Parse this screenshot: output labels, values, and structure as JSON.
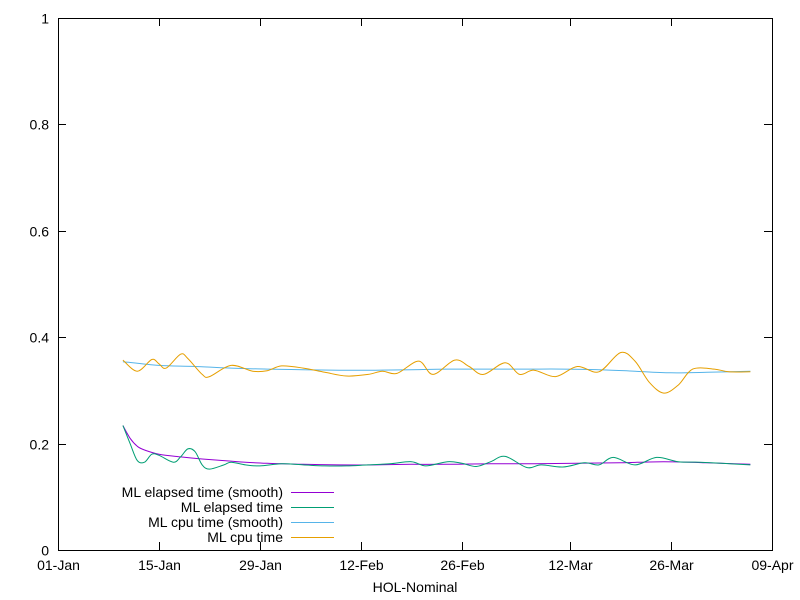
{
  "chart_data": {
    "type": "line",
    "xlabel": "HOL-Nominal",
    "ylabel": "",
    "ylim": [
      0,
      1
    ],
    "y_ticks": [
      0,
      0.2,
      0.4,
      0.6,
      0.8,
      1
    ],
    "y_tick_labels": [
      "0",
      "0.2",
      "0.4",
      "0.6",
      "0.8",
      "1"
    ],
    "x_range": [
      "2024-01-01",
      "2024-04-09"
    ],
    "x_ticks": [
      "2024-01-01",
      "2024-01-15",
      "2024-01-29",
      "2024-02-12",
      "2024-02-26",
      "2024-03-12",
      "2024-03-26",
      "2024-04-09"
    ],
    "x_tick_labels": [
      "01-Jan",
      "15-Jan",
      "29-Jan",
      "12-Feb",
      "26-Feb",
      "12-Mar",
      "26-Mar",
      "09-Apr"
    ],
    "grid": false,
    "legend_position": "bottom-left",
    "series": [
      {
        "name": "ML elapsed time (smooth)",
        "color": "#9400d3",
        "points": [
          [
            "2024-01-10",
            0.234
          ],
          [
            "2024-01-11",
            0.21
          ],
          [
            "2024-01-12",
            0.195
          ],
          [
            "2024-01-13",
            0.188
          ],
          [
            "2024-01-15",
            0.18
          ],
          [
            "2024-01-18",
            0.175
          ],
          [
            "2024-01-21",
            0.171
          ],
          [
            "2024-01-24",
            0.168
          ],
          [
            "2024-01-27",
            0.165
          ],
          [
            "2024-01-30",
            0.163
          ],
          [
            "2024-02-04",
            0.161
          ],
          [
            "2024-02-09",
            0.16
          ],
          [
            "2024-02-14",
            0.16
          ],
          [
            "2024-02-19",
            0.161
          ],
          [
            "2024-02-24",
            0.161
          ],
          [
            "2024-03-01",
            0.162
          ],
          [
            "2024-03-07",
            0.162
          ],
          [
            "2024-03-13",
            0.163
          ],
          [
            "2024-03-19",
            0.164
          ],
          [
            "2024-03-25",
            0.166
          ],
          [
            "2024-03-31",
            0.164
          ],
          [
            "2024-04-06",
            0.161
          ]
        ]
      },
      {
        "name": "ML elapsed time",
        "color": "#009e73",
        "points": [
          [
            "2024-01-10",
            0.234
          ],
          [
            "2024-01-11",
            0.2
          ],
          [
            "2024-01-12",
            0.168
          ],
          [
            "2024-01-13",
            0.165
          ],
          [
            "2024-01-14",
            0.18
          ],
          [
            "2024-01-15",
            0.178
          ],
          [
            "2024-01-17",
            0.165
          ],
          [
            "2024-01-18",
            0.175
          ],
          [
            "2024-01-19",
            0.19
          ],
          [
            "2024-01-20",
            0.185
          ],
          [
            "2024-01-21",
            0.16
          ],
          [
            "2024-01-22",
            0.152
          ],
          [
            "2024-01-24",
            0.16
          ],
          [
            "2024-01-25",
            0.165
          ],
          [
            "2024-01-27",
            0.16
          ],
          [
            "2024-01-29",
            0.158
          ],
          [
            "2024-02-01",
            0.162
          ],
          [
            "2024-02-04",
            0.16
          ],
          [
            "2024-02-07",
            0.158
          ],
          [
            "2024-02-10",
            0.158
          ],
          [
            "2024-02-13",
            0.16
          ],
          [
            "2024-02-16",
            0.162
          ],
          [
            "2024-02-19",
            0.166
          ],
          [
            "2024-02-21",
            0.158
          ],
          [
            "2024-02-24",
            0.166
          ],
          [
            "2024-02-26",
            0.163
          ],
          [
            "2024-02-28",
            0.157
          ],
          [
            "2024-03-01",
            0.166
          ],
          [
            "2024-03-03",
            0.176
          ],
          [
            "2024-03-06",
            0.155
          ],
          [
            "2024-03-08",
            0.16
          ],
          [
            "2024-03-11",
            0.156
          ],
          [
            "2024-03-14",
            0.164
          ],
          [
            "2024-03-16",
            0.16
          ],
          [
            "2024-03-18",
            0.174
          ],
          [
            "2024-03-21",
            0.16
          ],
          [
            "2024-03-24",
            0.174
          ],
          [
            "2024-03-27",
            0.166
          ],
          [
            "2024-03-30",
            0.165
          ],
          [
            "2024-04-02",
            0.163
          ],
          [
            "2024-04-06",
            0.16
          ]
        ]
      },
      {
        "name": "ML cpu time (smooth)",
        "color": "#56b4e9",
        "points": [
          [
            "2024-01-10",
            0.354
          ],
          [
            "2024-01-15",
            0.347
          ],
          [
            "2024-01-20",
            0.345
          ],
          [
            "2024-01-25",
            0.342
          ],
          [
            "2024-01-30",
            0.34
          ],
          [
            "2024-02-04",
            0.339
          ],
          [
            "2024-02-09",
            0.338
          ],
          [
            "2024-02-14",
            0.338
          ],
          [
            "2024-02-19",
            0.339
          ],
          [
            "2024-02-24",
            0.34
          ],
          [
            "2024-03-01",
            0.34
          ],
          [
            "2024-03-06",
            0.34
          ],
          [
            "2024-03-11",
            0.34
          ],
          [
            "2024-03-16",
            0.339
          ],
          [
            "2024-03-21",
            0.336
          ],
          [
            "2024-03-26",
            0.333
          ],
          [
            "2024-03-31",
            0.334
          ],
          [
            "2024-04-06",
            0.336
          ]
        ]
      },
      {
        "name": "ML cpu time",
        "color": "#e69f00",
        "points": [
          [
            "2024-01-10",
            0.357
          ],
          [
            "2024-01-12",
            0.336
          ],
          [
            "2024-01-14",
            0.358
          ],
          [
            "2024-01-15",
            0.35
          ],
          [
            "2024-01-16",
            0.342
          ],
          [
            "2024-01-18",
            0.368
          ],
          [
            "2024-01-19",
            0.36
          ],
          [
            "2024-01-21",
            0.33
          ],
          [
            "2024-01-22",
            0.326
          ],
          [
            "2024-01-25",
            0.347
          ],
          [
            "2024-01-28",
            0.336
          ],
          [
            "2024-01-30",
            0.337
          ],
          [
            "2024-02-01",
            0.346
          ],
          [
            "2024-02-04",
            0.342
          ],
          [
            "2024-02-07",
            0.334
          ],
          [
            "2024-02-10",
            0.327
          ],
          [
            "2024-02-13",
            0.33
          ],
          [
            "2024-02-15",
            0.336
          ],
          [
            "2024-02-17",
            0.332
          ],
          [
            "2024-02-20",
            0.355
          ],
          [
            "2024-02-22",
            0.33
          ],
          [
            "2024-02-25",
            0.357
          ],
          [
            "2024-02-27",
            0.345
          ],
          [
            "2024-02-29",
            0.33
          ],
          [
            "2024-03-03",
            0.352
          ],
          [
            "2024-03-05",
            0.33
          ],
          [
            "2024-03-07",
            0.338
          ],
          [
            "2024-03-10",
            0.326
          ],
          [
            "2024-03-13",
            0.345
          ],
          [
            "2024-03-16",
            0.335
          ],
          [
            "2024-03-19",
            0.371
          ],
          [
            "2024-03-21",
            0.355
          ],
          [
            "2024-03-23",
            0.315
          ],
          [
            "2024-03-25",
            0.295
          ],
          [
            "2024-03-27",
            0.31
          ],
          [
            "2024-03-29",
            0.34
          ],
          [
            "2024-04-01",
            0.34
          ],
          [
            "2024-04-03",
            0.335
          ],
          [
            "2024-04-06",
            0.335
          ]
        ]
      }
    ]
  }
}
